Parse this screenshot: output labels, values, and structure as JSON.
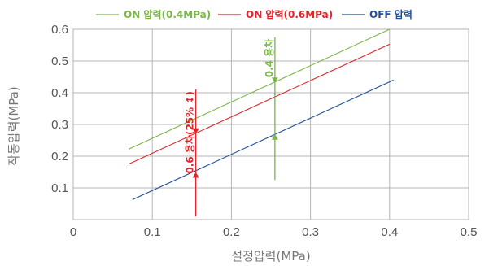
{
  "chart_data": {
    "type": "line",
    "xlabel": "설정압력(MPa)",
    "ylabel": "작동압력(MPa)",
    "xlim": [
      0,
      0.5
    ],
    "ylim": [
      0,
      0.6
    ],
    "x_ticks": [
      "0",
      "0.1",
      "0.2",
      "0.3",
      "0.4",
      "0.5"
    ],
    "y_ticks": [
      "0.1",
      "0.2",
      "0.3",
      "0.4",
      "0.5",
      "0.6"
    ],
    "grid": true,
    "legend_position": "top",
    "series": [
      {
        "name": "ON 압력(0.4MPa)",
        "color": "#7ab648",
        "style": "dashed",
        "x": [
          0.07,
          0.4
        ],
        "y": [
          0.222,
          0.6
        ]
      },
      {
        "name": "ON 압력(0.6MPa)",
        "color": "#e0262a",
        "style": "dashed",
        "x": [
          0.07,
          0.4
        ],
        "y": [
          0.175,
          0.553
        ]
      },
      {
        "name": "OFF 압력",
        "color": "#1f4e9c",
        "style": "solid",
        "x": [
          0.075,
          0.405
        ],
        "y": [
          0.063,
          0.44
        ]
      }
    ],
    "annotations": [
      {
        "text": "0.6 용차(25% ↕)",
        "color": "#e0262a",
        "x": 0.155,
        "y_top": 0.41,
        "y_bottom": 0.01,
        "arrow_down_y": 0.27,
        "arrow_up_y": 0.15
      },
      {
        "text": "0.4 용차",
        "color": "#7ab648",
        "x": 0.255,
        "y_top": 0.575,
        "y_bottom": 0.125,
        "arrow_down_y": 0.43,
        "arrow_up_y": 0.27
      }
    ]
  }
}
